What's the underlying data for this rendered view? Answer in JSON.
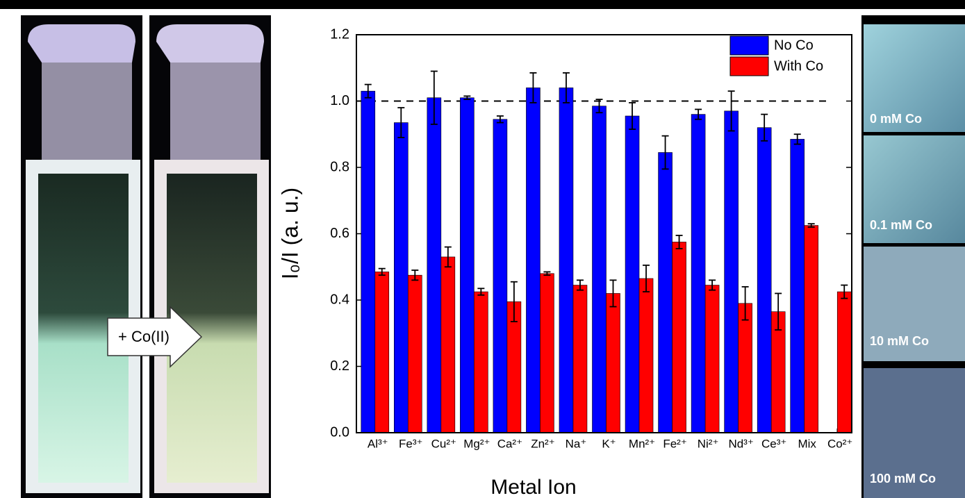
{
  "chart_data": {
    "type": "bar",
    "ylabel": "I₀/I (a. u.)",
    "xlabel": "Metal Ion",
    "categories": [
      "Al³⁺",
      "Fe³⁺",
      "Cu²⁺",
      "Mg²⁺",
      "Ca²⁺",
      "Zn²⁺",
      "Na⁺",
      "K⁺",
      "Mn²⁺",
      "Fe²⁺",
      "Ni²⁺",
      "Nd³⁺",
      "Ce³⁺",
      "Mix",
      "Co²⁺"
    ],
    "series": [
      {
        "name": "No Co",
        "color": "#0000ff",
        "values": [
          1.03,
          0.935,
          1.01,
          1.01,
          0.945,
          1.04,
          1.04,
          0.985,
          0.955,
          0.845,
          0.96,
          0.97,
          0.92,
          0.885,
          null
        ],
        "errors": [
          0.02,
          0.045,
          0.08,
          0.005,
          0.01,
          0.045,
          0.045,
          0.02,
          0.04,
          0.05,
          0.015,
          0.06,
          0.04,
          0.015,
          null
        ]
      },
      {
        "name": "With Co",
        "color": "#ff0000",
        "values": [
          0.485,
          0.475,
          0.53,
          0.425,
          0.395,
          0.48,
          0.445,
          0.42,
          0.465,
          0.575,
          0.445,
          0.39,
          0.365,
          0.625,
          0.425
        ],
        "errors": [
          0.01,
          0.015,
          0.03,
          0.01,
          0.06,
          0.005,
          0.015,
          0.04,
          0.04,
          0.02,
          0.015,
          0.05,
          0.055,
          0.005,
          0.02
        ]
      }
    ],
    "ylim": [
      0,
      1.2
    ],
    "yticks": [
      {
        "value": 0,
        "label": "0.0"
      },
      0.2,
      0.4,
      0.6,
      0.8,
      {
        "value": 1,
        "label": "1.0"
      },
      1.2
    ],
    "reference_line": 1,
    "legend": "upper right"
  },
  "panels": {
    "arrow_label": "+ Co(II)",
    "swatch_labels": [
      "0 mM Co",
      "0.1 mM Co",
      "10 mM Co",
      "100 mM Co"
    ]
  }
}
